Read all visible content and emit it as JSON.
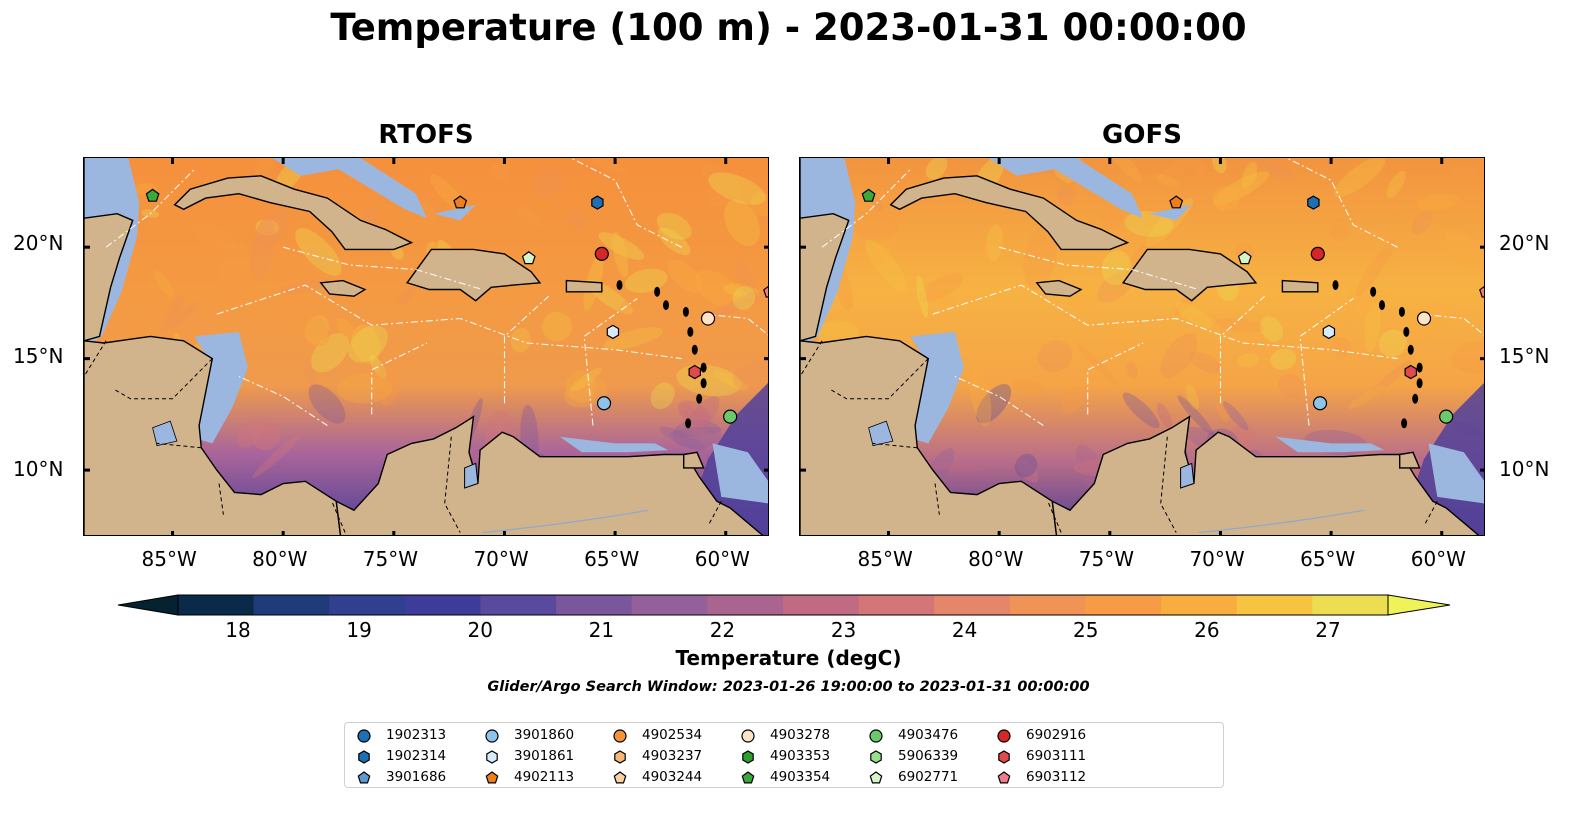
{
  "title": "Temperature (100 m) - 2023-01-31 00:00:00",
  "panels": [
    {
      "title": "RTOFS",
      "variant": "rtofs"
    },
    {
      "title": "GOFS",
      "variant": "gofs"
    }
  ],
  "lon_ticks": [
    "85°W",
    "80°W",
    "75°W",
    "70°W",
    "65°W",
    "60°W"
  ],
  "lat_ticks": [
    "20°N",
    "15°N",
    "10°N"
  ],
  "map_extent": {
    "lon": [
      -89,
      -58
    ],
    "lat": [
      7,
      24
    ]
  },
  "colorbar": {
    "label": "Temperature (degC)",
    "ticks": [
      "18",
      "19",
      "20",
      "21",
      "22",
      "23",
      "24",
      "25",
      "26",
      "27"
    ],
    "range": [
      18,
      27
    ],
    "colors": [
      "#0b2a4a",
      "#1f3b7a",
      "#30408f",
      "#3e3c9b",
      "#5a4a9e",
      "#7a569c",
      "#93609a",
      "#a9658f",
      "#c06b83",
      "#d47677",
      "#e5866b",
      "#ef9357",
      "#f79c45",
      "#faad3f",
      "#f6c441",
      "#ecde50"
    ]
  },
  "search_window": "Glider/Argo Search Window: 2023-01-26 19:00:00 to 2023-01-31 00:00:00",
  "land_color": "#d2b48c",
  "shelf_color": "#9bb7e0",
  "floats": [
    {
      "id": "1902313",
      "shape": "circle",
      "color": "#1f6fb4"
    },
    {
      "id": "1902314",
      "shape": "hexagon",
      "color": "#1f6fb4"
    },
    {
      "id": "3901686",
      "shape": "pentagon",
      "color": "#5b9bd5"
    },
    {
      "id": "3901860",
      "shape": "circle",
      "color": "#8ec3ea"
    },
    {
      "id": "3901861",
      "shape": "hexagon",
      "color": "#d6ecfa"
    },
    {
      "id": "4902113",
      "shape": "pentagon",
      "color": "#f07f1b"
    },
    {
      "id": "4902534",
      "shape": "circle",
      "color": "#f4923a"
    },
    {
      "id": "4903237",
      "shape": "hexagon",
      "color": "#f8b774"
    },
    {
      "id": "4903244",
      "shape": "pentagon",
      "color": "#fcd0a1"
    },
    {
      "id": "4903278",
      "shape": "circle",
      "color": "#fde3c8"
    },
    {
      "id": "4903353",
      "shape": "hexagon",
      "color": "#2ca02c"
    },
    {
      "id": "4903354",
      "shape": "pentagon",
      "color": "#3aa83a"
    },
    {
      "id": "4903476",
      "shape": "circle",
      "color": "#6bc96b"
    },
    {
      "id": "5906339",
      "shape": "hexagon",
      "color": "#98df8a"
    },
    {
      "id": "6902771",
      "shape": "pentagon",
      "color": "#d4f5c8"
    },
    {
      "id": "6902916",
      "shape": "circle",
      "color": "#d62728"
    },
    {
      "id": "6903111",
      "shape": "hexagon",
      "color": "#e04a4a"
    },
    {
      "id": "6903112",
      "shape": "pentagon",
      "color": "#f27c8b"
    }
  ],
  "float_positions": [
    {
      "id": "4903354",
      "lon": -85.9,
      "lat": 22.3
    },
    {
      "id": "4902113",
      "lon": -72.0,
      "lat": 22.0
    },
    {
      "id": "1902314",
      "lon": -65.8,
      "lat": 22.0
    },
    {
      "id": "6902771",
      "lon": -68.9,
      "lat": 19.5
    },
    {
      "id": "6902916",
      "lon": -65.6,
      "lat": 19.7
    },
    {
      "id": "6903112",
      "lon": -58.0,
      "lat": 18.0
    },
    {
      "id": "4903278",
      "lon": -60.8,
      "lat": 16.8
    },
    {
      "id": "3901861",
      "lon": -65.1,
      "lat": 16.2
    },
    {
      "id": "6903111",
      "lon": -61.4,
      "lat": 14.4
    },
    {
      "id": "3901860",
      "lon": -65.5,
      "lat": 13.0
    },
    {
      "id": "4903476",
      "lon": -59.8,
      "lat": 12.4
    }
  ]
}
